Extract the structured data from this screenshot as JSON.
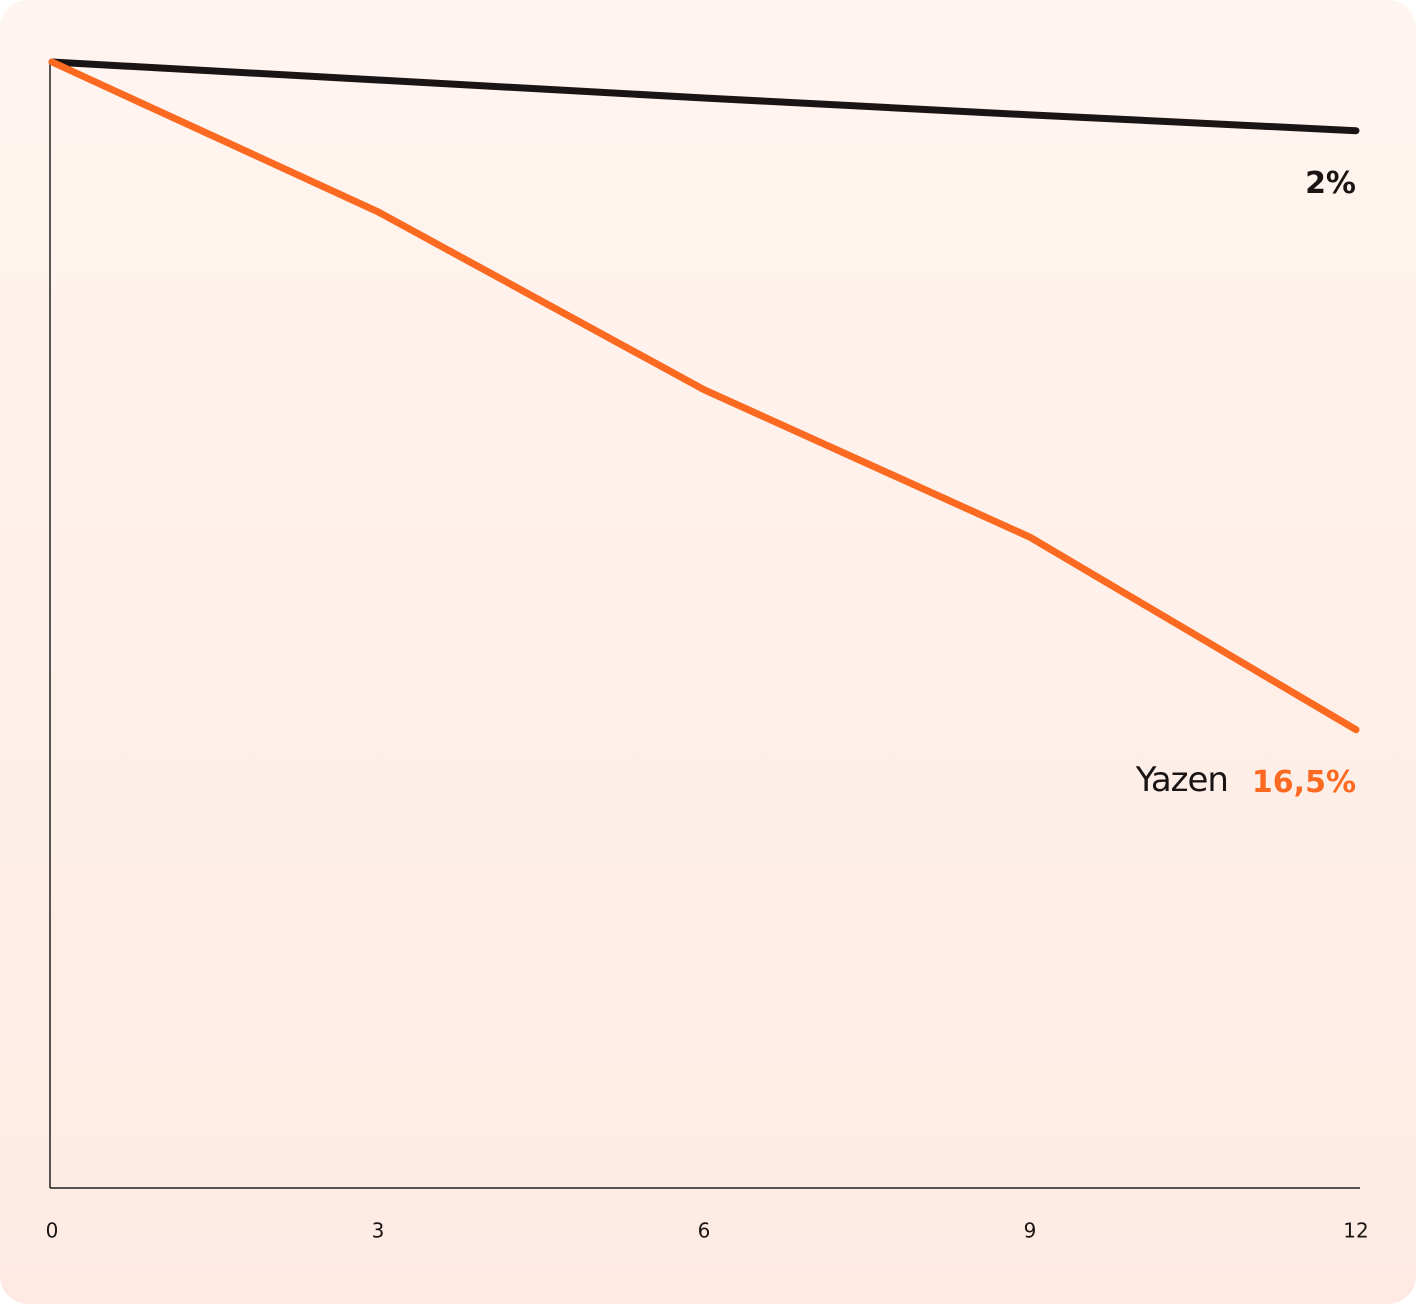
{
  "chart_data": {
    "type": "line",
    "x": [
      0,
      3,
      6,
      9,
      12
    ],
    "xlim": [
      0,
      12
    ],
    "xticks": [
      0,
      3,
      6,
      9,
      12
    ],
    "ylim": [
      0,
      100
    ],
    "series": [
      {
        "color": "#1a1414",
        "values": [
          100,
          98.4,
          96.8,
          95.3,
          93.9
        ],
        "end_label": "2%"
      },
      {
        "name": "Yazen",
        "color": "#fc6a21",
        "values": [
          100,
          86.7,
          70.9,
          57.8,
          40.7
        ],
        "end_label": "16,5%"
      }
    ]
  }
}
